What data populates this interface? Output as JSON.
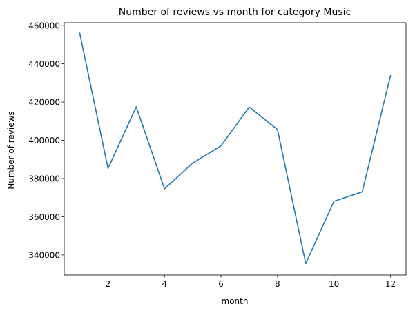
{
  "chart_data": {
    "type": "line",
    "title": "Number of reviews vs month for category Music",
    "xlabel": "month",
    "ylabel": "Number of reviews",
    "x": [
      1,
      2,
      3,
      4,
      5,
      6,
      7,
      8,
      9,
      10,
      11,
      12
    ],
    "series": [
      {
        "name": "Music",
        "values": [
          456000,
          385300,
          417500,
          374600,
          388100,
          397100,
          417400,
          405600,
          335500,
          368100,
          373000,
          433800
        ],
        "color": "#1f77b4"
      }
    ],
    "xlim": [
      0.45,
      12.55
    ],
    "ylim": [
      329500,
      461500
    ],
    "xticks": [
      2,
      4,
      6,
      8,
      10,
      12
    ],
    "xtick_labels": [
      "2",
      "4",
      "6",
      "8",
      "10",
      "12"
    ],
    "yticks": [
      340000,
      360000,
      380000,
      400000,
      420000,
      440000,
      460000
    ],
    "ytick_labels": [
      "340000",
      "360000",
      "380000",
      "400000",
      "420000",
      "440000",
      "460000"
    ],
    "grid": false,
    "legend": "none"
  }
}
